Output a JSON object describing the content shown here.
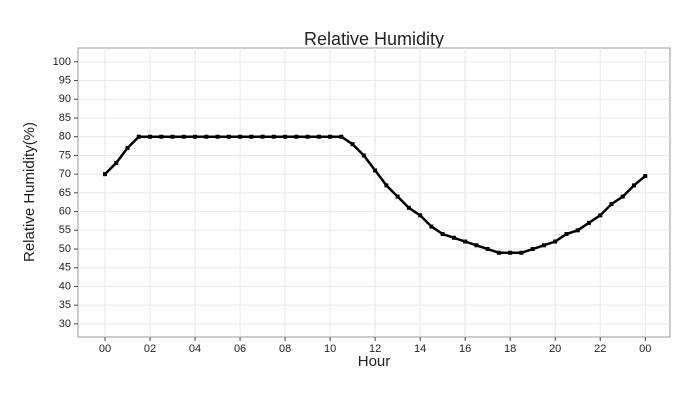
{
  "chart_data": {
    "type": "line",
    "title": "Relative Humidity",
    "x_label": "Hour",
    "y_label": "Relative Humidity(%)",
    "x": [
      0,
      0.5,
      1,
      1.5,
      2,
      2.5,
      3,
      3.5,
      4,
      4.5,
      5,
      5.5,
      6,
      6.5,
      7,
      7.5,
      8,
      8.5,
      9,
      9.5,
      10,
      10.5,
      11,
      11.5,
      12,
      12.5,
      13,
      13.5,
      14,
      14.5,
      15,
      15.5,
      16,
      16.5,
      17,
      17.5,
      18,
      18.5,
      19,
      19.5,
      20,
      20.5,
      21,
      21.5,
      22,
      22.5,
      23,
      23.5,
      24
    ],
    "series": [
      {
        "color": "#000000",
        "values": [
          70,
          73,
          77,
          80,
          80,
          80,
          80,
          80,
          80,
          80,
          80,
          80,
          80,
          80,
          80,
          80,
          80,
          80,
          80,
          80,
          80,
          80,
          78,
          75,
          71,
          67,
          64,
          61,
          59,
          56,
          54,
          53,
          52,
          51,
          50,
          49,
          49,
          49,
          50,
          51,
          52,
          54,
          55,
          57,
          59,
          62,
          64,
          67,
          69.5
        ]
      }
    ],
    "xlim": [
      -1.2,
      25.1
    ],
    "ylim": [
      26.5,
      103.7
    ],
    "xticks": [
      {
        "value": 0,
        "label": "00"
      },
      {
        "value": 2,
        "label": "02"
      },
      {
        "value": 4,
        "label": "04"
      },
      {
        "value": 6,
        "label": "06"
      },
      {
        "value": 8,
        "label": "08"
      },
      10,
      12,
      14,
      16,
      18,
      20,
      22,
      {
        "value": 24,
        "label": "00"
      }
    ],
    "yticks": [
      30,
      35,
      40,
      45,
      50,
      55,
      60,
      65,
      70,
      75,
      80,
      85,
      90,
      95,
      100
    ],
    "grid": true
  }
}
